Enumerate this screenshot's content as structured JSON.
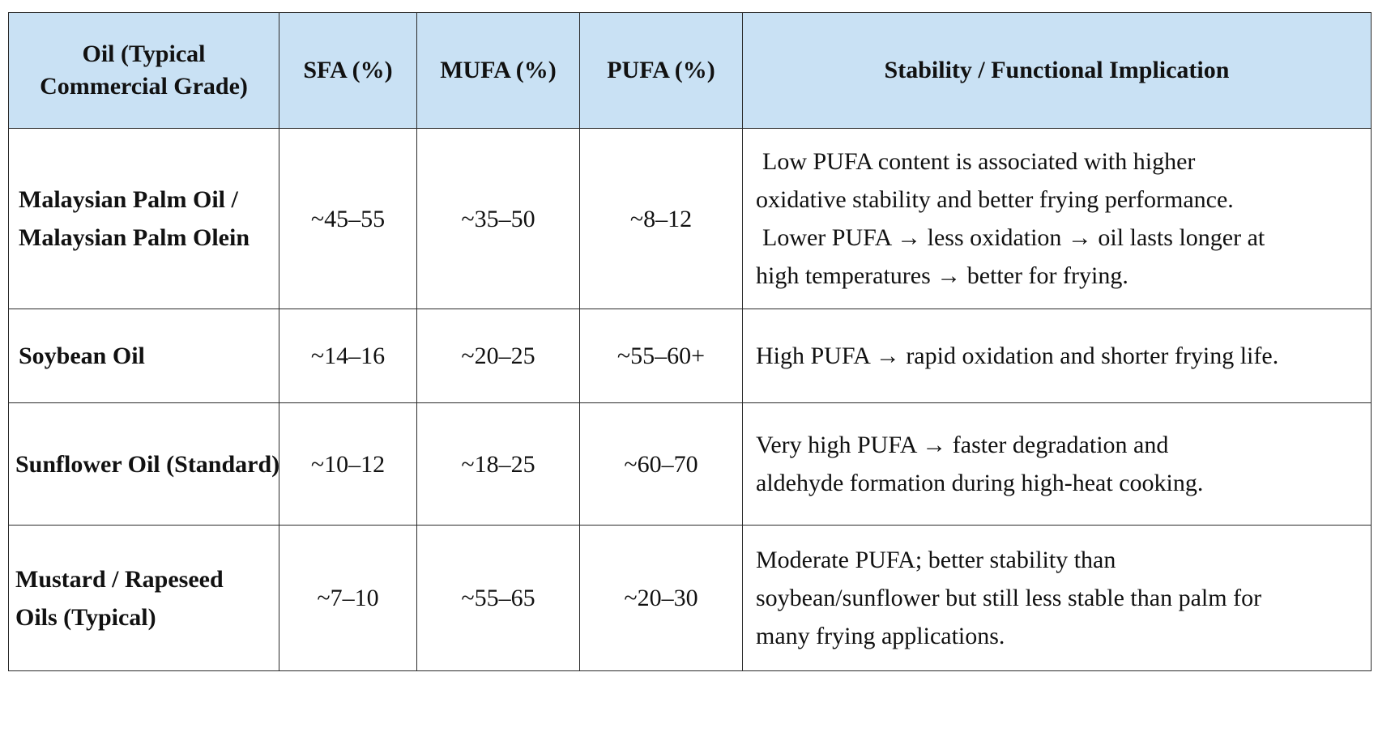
{
  "table": {
    "headers": {
      "oil": "Oil (Typical Commercial Grade)",
      "sfa": "SFA (%)",
      "mufa": "MUFA (%)",
      "pufa": "PUFA (%)",
      "stability": "Stability / Functional Implication"
    },
    "rows": [
      {
        "oil": "Malaysian Palm Oil / Malaysian Palm Olein",
        "sfa": "~45–55",
        "mufa": "~35–50",
        "pufa": "~8–12",
        "implication": [
          "Low PUFA content is associated with higher",
          "oxidative stability and better frying performance.",
          "Lower PUFA → less oxidation → oil lasts longer at",
          "high temperatures → better for frying."
        ]
      },
      {
        "oil": "Soybean Oil",
        "sfa": "~14–16",
        "mufa": "~20–25",
        "pufa": "~55–60+",
        "implication": [
          "High PUFA → rapid oxidation and shorter frying life."
        ]
      },
      {
        "oil": "Sunflower Oil (Standard)",
        "sfa": "~10–12",
        "mufa": "~18–25",
        "pufa": "~60–70",
        "implication": [
          "Very high PUFA → faster degradation and",
          "aldehyde formation during high-heat cooking."
        ]
      },
      {
        "oil": "Mustard / Rapeseed Oils (Typical)",
        "sfa": "~7–10",
        "mufa": "~55–65",
        "pufa": "~20–30",
        "implication": [
          "Moderate PUFA; better stability than",
          "soybean/sunflower but still less stable than palm for",
          "many frying applications."
        ]
      }
    ]
  }
}
